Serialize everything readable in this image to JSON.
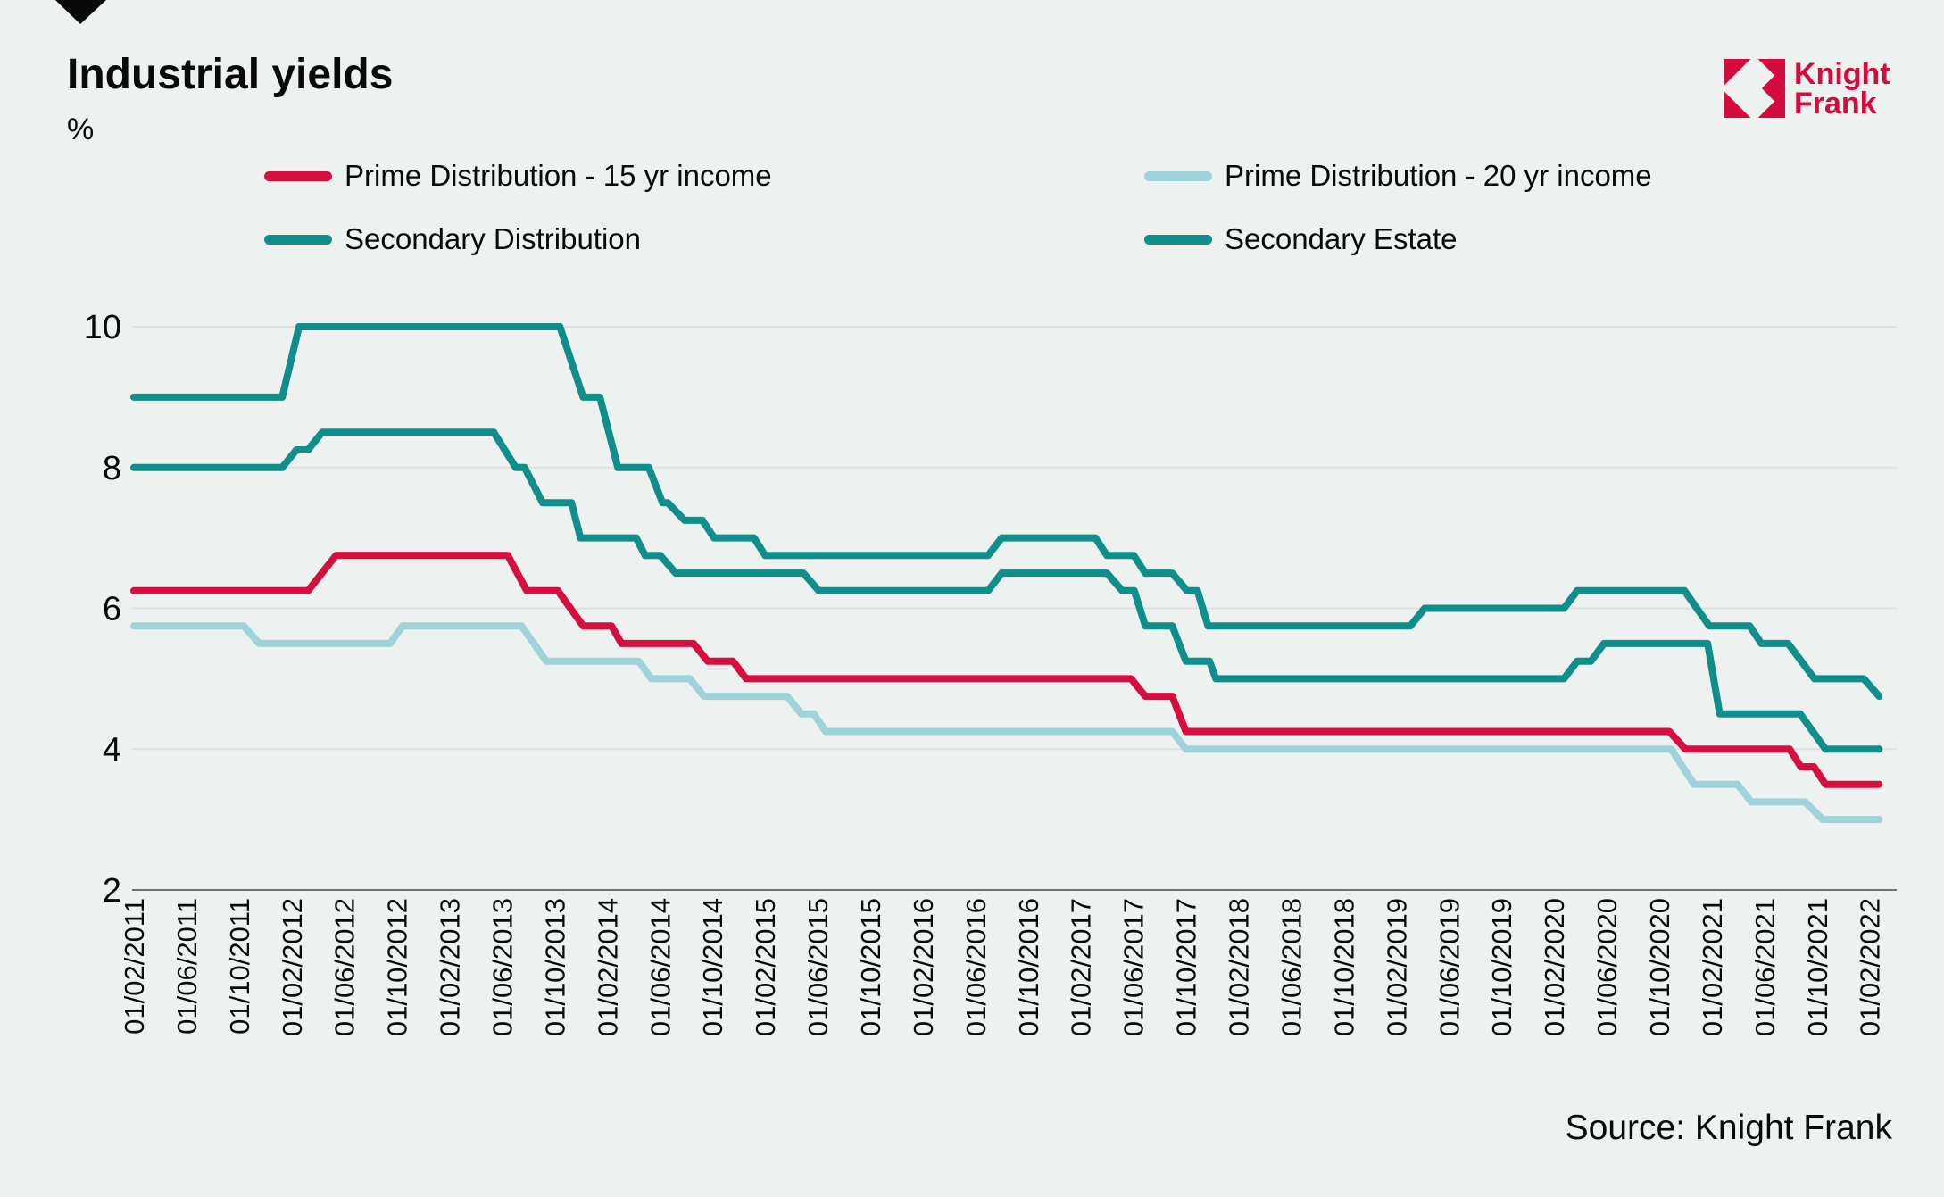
{
  "header": {
    "title": "Industrial yields",
    "unit_label": "%"
  },
  "logo": {
    "line1": "Knight",
    "line2": "Frank",
    "color": "#d40b3d"
  },
  "legend": {
    "items": [
      {
        "label": "Prime Distribution - 15 yr income",
        "color": "#d50f3f",
        "row": 0,
        "col": 0
      },
      {
        "label": "Prime Distribution - 20 yr income",
        "color": "#9ed3da",
        "row": 0,
        "col": 1
      },
      {
        "label": "Secondary Distribution",
        "color": "#0f8e8c",
        "row": 1,
        "col": 0
      },
      {
        "label": "Secondary Estate",
        "color": "#0f8e8c",
        "row": 1,
        "col": 1
      }
    ]
  },
  "source": {
    "text": "Source: Knight Frank"
  },
  "chart_data": {
    "type": "line",
    "title": "Industrial yields",
    "xlabel": "",
    "ylabel": "%",
    "ylim": [
      2,
      10
    ],
    "yticks": [
      10,
      8,
      6,
      4,
      2
    ],
    "grid": "horizontal",
    "legend_position": "top",
    "x_tick_labels": [
      "01/02/2011",
      "01/06/2011",
      "01/10/2011",
      "01/02/2012",
      "01/06/2012",
      "01/10/2012",
      "01/02/2013",
      "01/06/2013",
      "01/10/2013",
      "01/02/2014",
      "01/06/2014",
      "01/10/2014",
      "01/02/2015",
      "01/06/2015",
      "01/10/2015",
      "01/02/2016",
      "01/06/2016",
      "01/10/2016",
      "01/02/2017",
      "01/06/2017",
      "01/10/2017",
      "01/02/2018",
      "01/06/2018",
      "01/10/2018",
      "01/02/2019",
      "01/06/2019",
      "01/10/2019",
      "01/02/2020",
      "01/06/2020",
      "01/10/2020",
      "01/02/2021",
      "01/06/2021",
      "01/10/2021",
      "01/02/2022"
    ],
    "series": [
      {
        "name": "Prime Distribution - 20 yr income",
        "color": "#9ed3da",
        "points": [
          [
            0,
            5.75
          ],
          [
            2.09,
            5.75
          ],
          [
            2.38,
            5.5
          ],
          [
            4.87,
            5.5
          ],
          [
            5.11,
            5.75
          ],
          [
            7.37,
            5.75
          ],
          [
            7.84,
            5.25
          ],
          [
            9.6,
            5.25
          ],
          [
            9.84,
            5.0
          ],
          [
            10.57,
            5.0
          ],
          [
            10.84,
            4.75
          ],
          [
            12.42,
            4.75
          ],
          [
            12.69,
            4.5
          ],
          [
            12.93,
            4.5
          ],
          [
            13.15,
            4.25
          ],
          [
            19.74,
            4.25
          ],
          [
            20.0,
            4.0
          ],
          [
            29.23,
            4.0
          ],
          [
            29.66,
            3.5
          ],
          [
            30.49,
            3.5
          ],
          [
            30.75,
            3.25
          ],
          [
            31.77,
            3.25
          ],
          [
            32.11,
            3.0
          ],
          [
            33.18,
            3.0
          ]
        ]
      },
      {
        "name": "Prime Distribution - 15 yr income",
        "color": "#d50f3f",
        "points": [
          [
            0,
            6.25
          ],
          [
            3.31,
            6.25
          ],
          [
            3.84,
            6.75
          ],
          [
            7.11,
            6.75
          ],
          [
            7.47,
            6.25
          ],
          [
            8.06,
            6.25
          ],
          [
            8.54,
            5.75
          ],
          [
            9.08,
            5.75
          ],
          [
            9.27,
            5.5
          ],
          [
            10.64,
            5.5
          ],
          [
            10.91,
            5.25
          ],
          [
            11.39,
            5.25
          ],
          [
            11.64,
            5.0
          ],
          [
            18.96,
            5.0
          ],
          [
            19.23,
            4.75
          ],
          [
            19.74,
            4.75
          ],
          [
            20.0,
            4.25
          ],
          [
            29.19,
            4.25
          ],
          [
            29.5,
            4.0
          ],
          [
            31.48,
            4.0
          ],
          [
            31.69,
            3.75
          ],
          [
            31.94,
            3.75
          ],
          [
            32.16,
            3.5
          ],
          [
            33.18,
            3.5
          ]
        ]
      },
      {
        "name": "Secondary Distribution",
        "color": "#0f8e8c",
        "points": [
          [
            0,
            8.0
          ],
          [
            2.82,
            8.0
          ],
          [
            3.09,
            8.25
          ],
          [
            3.31,
            8.25
          ],
          [
            3.58,
            8.5
          ],
          [
            6.84,
            8.5
          ],
          [
            7.26,
            8.0
          ],
          [
            7.43,
            8.0
          ],
          [
            7.77,
            7.5
          ],
          [
            8.32,
            7.5
          ],
          [
            8.49,
            7.0
          ],
          [
            9.55,
            7.0
          ],
          [
            9.72,
            6.75
          ],
          [
            10.01,
            6.75
          ],
          [
            10.3,
            6.5
          ],
          [
            12.73,
            6.5
          ],
          [
            13.02,
            6.25
          ],
          [
            16.24,
            6.25
          ],
          [
            16.5,
            6.5
          ],
          [
            18.5,
            6.5
          ],
          [
            18.79,
            6.25
          ],
          [
            19.02,
            6.25
          ],
          [
            19.23,
            5.75
          ],
          [
            19.74,
            5.75
          ],
          [
            20.0,
            5.25
          ],
          [
            20.45,
            5.25
          ],
          [
            20.57,
            5.0
          ],
          [
            27.19,
            5.0
          ],
          [
            27.44,
            5.25
          ],
          [
            27.7,
            5.25
          ],
          [
            27.95,
            5.5
          ],
          [
            29.92,
            5.5
          ],
          [
            30.15,
            4.5
          ],
          [
            31.68,
            4.5
          ],
          [
            32.16,
            4.0
          ],
          [
            33.18,
            4.0
          ]
        ]
      },
      {
        "name": "Secondary Estate",
        "color": "#0f8e8c",
        "points": [
          [
            0,
            9.0
          ],
          [
            2.82,
            9.0
          ],
          [
            3.14,
            10.0
          ],
          [
            8.1,
            10.0
          ],
          [
            8.54,
            9.0
          ],
          [
            8.86,
            9.0
          ],
          [
            9.2,
            8.0
          ],
          [
            9.79,
            8.0
          ],
          [
            10.05,
            7.5
          ],
          [
            10.15,
            7.5
          ],
          [
            10.47,
            7.25
          ],
          [
            10.81,
            7.25
          ],
          [
            11.03,
            7.0
          ],
          [
            11.79,
            7.0
          ],
          [
            12.0,
            6.75
          ],
          [
            16.24,
            6.75
          ],
          [
            16.5,
            7.0
          ],
          [
            18.28,
            7.0
          ],
          [
            18.5,
            6.75
          ],
          [
            19.01,
            6.75
          ],
          [
            19.23,
            6.5
          ],
          [
            19.74,
            6.5
          ],
          [
            20.02,
            6.25
          ],
          [
            20.22,
            6.25
          ],
          [
            20.42,
            5.75
          ],
          [
            24.27,
            5.75
          ],
          [
            24.54,
            6.0
          ],
          [
            27.19,
            6.0
          ],
          [
            27.44,
            6.25
          ],
          [
            29.48,
            6.25
          ],
          [
            29.95,
            5.75
          ],
          [
            30.72,
            5.75
          ],
          [
            30.94,
            5.5
          ],
          [
            31.45,
            5.5
          ],
          [
            31.95,
            5.0
          ],
          [
            32.89,
            5.0
          ],
          [
            33.18,
            4.75
          ]
        ]
      }
    ],
    "source": "Source: Knight Frank"
  },
  "colors": {
    "background": "#edf1f0",
    "gridline": "#dce2e0",
    "axis_line": "#6b7472",
    "text": "#0a0a0a",
    "brand_red": "#d40b3d",
    "series_red": "#d50f3f",
    "series_teal": "#0f8e8c",
    "series_light_blue": "#9ed3da"
  }
}
